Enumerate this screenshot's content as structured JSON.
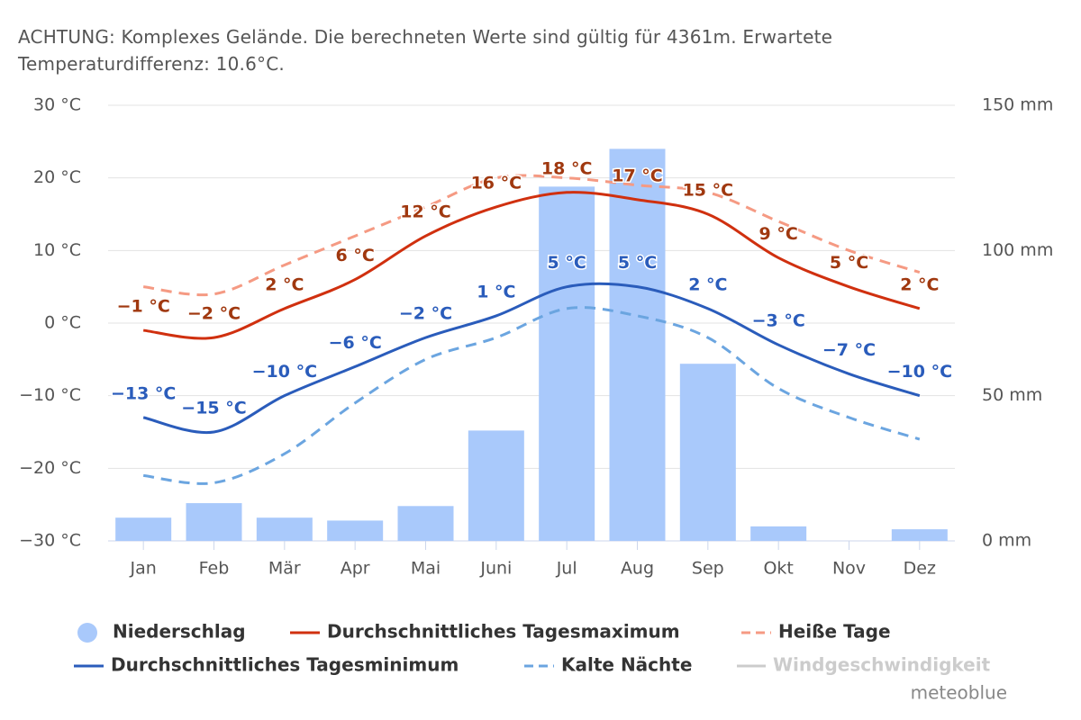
{
  "chart_data": {
    "type": "combo",
    "title": "ACHTUNG: Komplexes Gelände. Die berechneten Werte sind gültig für 4361m. Erwartete Temperaturdifferenz: 10.6°C.",
    "categories": [
      "Jan",
      "Feb",
      "Mär",
      "Apr",
      "Mai",
      "Juni",
      "Jul",
      "Aug",
      "Sep",
      "Okt",
      "Nov",
      "Dez"
    ],
    "ylim": [
      -30,
      30
    ],
    "yticks": [
      {
        "value": -30,
        "label": "−30 °C"
      },
      {
        "value": -20,
        "label": "−20 °C"
      },
      {
        "value": -10,
        "label": "−10 °C"
      },
      {
        "value": 0,
        "label": "0 °C"
      },
      {
        "value": 10,
        "label": "10 °C"
      },
      {
        "value": 20,
        "label": "20 °C"
      },
      {
        "value": 30,
        "label": "30 °C"
      }
    ],
    "y2lim": [
      0,
      150
    ],
    "y2ticks": [
      {
        "value": 0,
        "label": "0 mm"
      },
      {
        "value": 50,
        "label": "50 mm"
      },
      {
        "value": 100,
        "label": "100 mm"
      },
      {
        "value": 150,
        "label": "150 mm"
      }
    ],
    "grid": true,
    "series": [
      {
        "name": "Niederschlag",
        "kind": "bar",
        "axis": "y2",
        "color": "#a9c9fb",
        "values": [
          8,
          13,
          8,
          7,
          12,
          38,
          122,
          135,
          61,
          5,
          0,
          4
        ]
      },
      {
        "name": "Durchschnittliches Tagesmaximum",
        "kind": "line",
        "color": "#d0300f",
        "label_color": "#a0380f",
        "values": [
          -1,
          -2,
          2,
          6,
          12,
          16,
          18,
          17,
          15,
          9,
          5,
          2
        ],
        "value_labels": [
          "−1 °C",
          "−2 °C",
          "2 °C",
          "6 °C",
          "12 °C",
          "16 °C",
          "18 °C",
          "17 °C",
          "15 °C",
          "9 °C",
          "5 °C",
          "2 °C"
        ]
      },
      {
        "name": "Heiße Tage",
        "kind": "dashed",
        "color": "#f59a83",
        "values": [
          5,
          4,
          8,
          12,
          16,
          20,
          20,
          19,
          18,
          14,
          10,
          7
        ]
      },
      {
        "name": "Durchschnittliches Tagesminimum",
        "kind": "line",
        "color": "#2a5cbb",
        "label_color": "#2a5cbb",
        "values": [
          -13,
          -15,
          -10,
          -6,
          -2,
          1,
          5,
          5,
          2,
          -3,
          -7,
          -10
        ],
        "value_labels": [
          "−13 °C",
          "−15 °C",
          "−10 °C",
          "−6 °C",
          "−2 °C",
          "1 °C",
          "5 °C",
          "5 °C",
          "2 °C",
          "−3 °C",
          "−7 °C",
          "−10 °C"
        ]
      },
      {
        "name": "Kalte Nächte",
        "kind": "dashed",
        "color": "#6ba5e0",
        "values": [
          -21,
          -22,
          -18,
          -11,
          -5,
          -2,
          2,
          1,
          -2,
          -9,
          -13,
          -16
        ]
      }
    ],
    "inactive_legend": [
      {
        "name": "Windgeschwindigkeit",
        "color": "#cccccc"
      }
    ],
    "credit": "meteoblue"
  }
}
